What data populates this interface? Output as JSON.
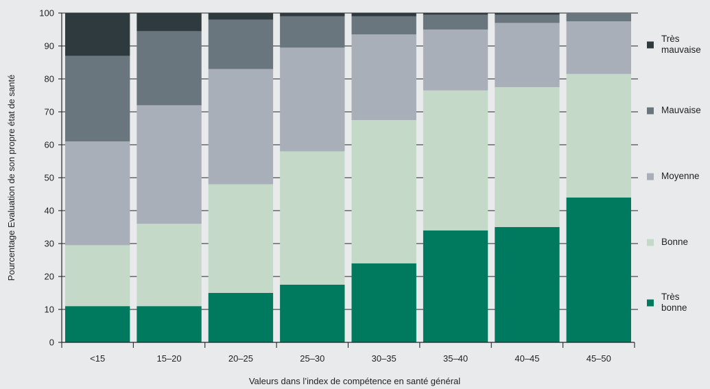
{
  "chart_data": {
    "type": "bar",
    "stacked": true,
    "title": "",
    "xlabel": "Valeurs dans l’index de compétence en santé général",
    "ylabel": "Pourcentage Evaluation de son propre état de santé",
    "ylim": [
      0,
      100
    ],
    "yticks": [
      0,
      10,
      20,
      30,
      40,
      50,
      60,
      70,
      80,
      90,
      100
    ],
    "grid": true,
    "legend_position": "right",
    "categories": [
      "<15",
      "15–20",
      "20–25",
      "25–30",
      "30–35",
      "35–40",
      "40–45",
      "45–50"
    ],
    "series": [
      {
        "name": "Très bonne",
        "color": "#007a5e",
        "values": [
          11,
          11,
          15,
          17.5,
          24,
          34,
          35,
          44
        ]
      },
      {
        "name": "Bonne",
        "color": "#c5d9c9",
        "values": [
          18.5,
          25,
          33,
          40.5,
          43.5,
          42.5,
          42.5,
          37.5
        ]
      },
      {
        "name": "Moyenne",
        "color": "#a8afb8",
        "values": [
          31.5,
          36,
          35,
          31.5,
          26,
          18.5,
          19.5,
          16
        ]
      },
      {
        "name": "Mauvaise",
        "color": "#6a767e",
        "values": [
          26,
          22.5,
          15,
          9.5,
          5.5,
          4.5,
          2.5,
          2.5
        ]
      },
      {
        "name": "Très mauvaise",
        "color": "#2f3a3f",
        "values": [
          13,
          5.5,
          2,
          1,
          1,
          0.5,
          0.5,
          0
        ]
      }
    ],
    "legend": [
      {
        "lines": [
          "Très",
          "mauvaise"
        ],
        "color": "#2f3a3f"
      },
      {
        "lines": [
          "Mauvaise"
        ],
        "color": "#6a767e"
      },
      {
        "lines": [
          "Moyenne"
        ],
        "color": "#a8afb8"
      },
      {
        "lines": [
          "Bonne"
        ],
        "color": "#c5d9c9"
      },
      {
        "lines": [
          "Très",
          "bonne"
        ],
        "color": "#007a5e"
      }
    ]
  }
}
